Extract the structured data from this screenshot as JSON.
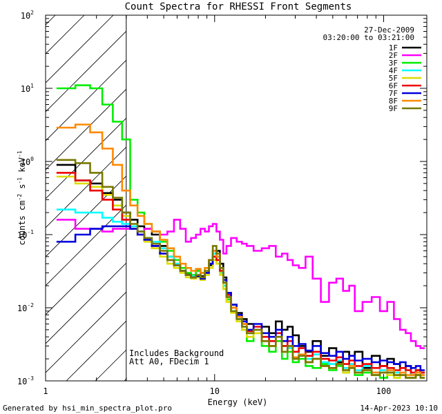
{
  "chart_data": {
    "type": "line",
    "title": "Count Spectra for RHESSI Front Segments",
    "xlabel": "Energy (keV)",
    "ylabel": "counts cm^-2 s^-1 keV^-1",
    "xscale": "log",
    "yscale": "log",
    "xlim": [
      1,
      180
    ],
    "ylim": [
      0.001,
      100
    ],
    "x_ticks": [
      {
        "value": 1,
        "label": "1"
      },
      {
        "value": 10,
        "label": "10"
      },
      {
        "value": 100,
        "label": "100"
      }
    ],
    "y_ticks": [
      {
        "value": 0.001,
        "base": "10",
        "exp": "-3"
      },
      {
        "value": 0.01,
        "base": "10",
        "exp": "-2"
      },
      {
        "value": 0.1,
        "base": "10",
        "exp": "-1"
      },
      {
        "value": 1,
        "base": "10",
        "exp": "0"
      },
      {
        "value": 10,
        "base": "10",
        "exp": "1"
      },
      {
        "value": 100,
        "base": "10",
        "exp": "2"
      }
    ],
    "legend": {
      "position": "top-right",
      "date": "27-Dec-2009",
      "time_range": "03:20:00 to 03:21:00"
    },
    "shaded_region": {
      "x_from": 1,
      "x_to": 3,
      "pattern": "diagonal-hatch"
    },
    "annotations": [
      "Includes Background",
      "Att A0, FDecim 1"
    ],
    "energy_bins_keV": [
      1.33,
      1.67,
      2,
      2.33,
      2.67,
      3,
      3.33,
      3.67,
      4,
      4.5,
      5,
      5.5,
      6,
      6.5,
      7,
      7.5,
      8,
      8.5,
      9,
      9.5,
      10,
      10.5,
      11,
      11.5,
      12,
      13,
      14,
      15,
      16,
      18,
      20,
      22,
      24,
      26,
      28,
      30,
      33,
      36,
      40,
      45,
      50,
      55,
      60,
      65,
      70,
      80,
      90,
      100,
      110,
      120,
      130,
      140,
      150,
      160,
      170
    ],
    "series": [
      {
        "name": "1F",
        "color": "#000000",
        "values": [
          0.9,
          0.55,
          0.5,
          0.37,
          0.3,
          0.2,
          0.16,
          0.13,
          0.12,
          0.1,
          0.07,
          0.05,
          0.04,
          0.032,
          0.029,
          0.027,
          0.032,
          0.027,
          0.03,
          0.038,
          0.05,
          0.06,
          0.04,
          0.026,
          0.016,
          0.011,
          0.0085,
          0.007,
          0.006,
          0.005,
          0.0055,
          0.0045,
          0.0065,
          0.005,
          0.0055,
          0.0042,
          0.003,
          0.0025,
          0.0035,
          0.0022,
          0.0028,
          0.0018,
          0.0025,
          0.0022,
          0.0025,
          0.0015,
          0.0022,
          0.0016,
          0.002,
          0.0017,
          0.0015,
          0.0016,
          0.0012,
          0.0014,
          0.0013
        ]
      },
      {
        "name": "2F",
        "color": "#ff00ff",
        "values": [
          0.16,
          0.12,
          0.12,
          0.11,
          0.12,
          0.12,
          0.12,
          0.11,
          0.12,
          0.11,
          0.1,
          0.11,
          0.16,
          0.12,
          0.08,
          0.09,
          0.1,
          0.12,
          0.11,
          0.13,
          0.14,
          0.11,
          0.085,
          0.055,
          0.07,
          0.09,
          0.08,
          0.075,
          0.07,
          0.06,
          0.065,
          0.07,
          0.05,
          0.055,
          0.045,
          0.038,
          0.035,
          0.05,
          0.025,
          0.012,
          0.022,
          0.025,
          0.017,
          0.02,
          0.009,
          0.012,
          0.014,
          0.009,
          0.012,
          0.007,
          0.005,
          0.0045,
          0.0035,
          0.003,
          0.0028
        ]
      },
      {
        "name": "3F",
        "color": "#00ee00",
        "values": [
          10,
          11,
          10,
          6,
          3.5,
          2,
          0.3,
          0.2,
          0.14,
          0.11,
          0.08,
          0.06,
          0.045,
          0.035,
          0.03,
          0.028,
          0.032,
          0.03,
          0.035,
          0.045,
          0.05,
          0.04,
          0.03,
          0.02,
          0.013,
          0.01,
          0.007,
          0.005,
          0.0035,
          0.0045,
          0.003,
          0.0025,
          0.0035,
          0.002,
          0.0025,
          0.0018,
          0.002,
          0.0016,
          0.0015,
          0.0017,
          0.0014,
          0.0016,
          0.0013,
          0.0015,
          0.0012,
          0.0013,
          0.0012,
          0.0011,
          0.0013,
          0.0011,
          0.0012,
          0.0011,
          0.0011,
          0.0012,
          0.0011
        ]
      },
      {
        "name": "4F",
        "color": "#00ffff",
        "values": [
          0.22,
          0.2,
          0.2,
          0.17,
          0.15,
          0.14,
          0.13,
          0.11,
          0.09,
          0.08,
          0.065,
          0.05,
          0.04,
          0.032,
          0.028,
          0.027,
          0.028,
          0.026,
          0.03,
          0.04,
          0.055,
          0.045,
          0.03,
          0.02,
          0.014,
          0.009,
          0.007,
          0.0055,
          0.0045,
          0.005,
          0.004,
          0.0035,
          0.0045,
          0.003,
          0.0028,
          0.0025,
          0.0022,
          0.002,
          0.0023,
          0.0018,
          0.0017,
          0.0019,
          0.0015,
          0.0017,
          0.0014,
          0.0016,
          0.0013,
          0.0014,
          0.0015,
          0.0013,
          0.0012,
          0.0014,
          0.0012,
          0.0013,
          0.0012
        ]
      },
      {
        "name": "5F",
        "color": "#dddd00",
        "values": [
          0.62,
          0.5,
          0.45,
          0.35,
          0.25,
          0.18,
          0.12,
          0.1,
          0.08,
          0.065,
          0.05,
          0.04,
          0.035,
          0.03,
          0.026,
          0.025,
          0.026,
          0.024,
          0.028,
          0.035,
          0.045,
          0.04,
          0.028,
          0.018,
          0.012,
          0.0085,
          0.0065,
          0.005,
          0.004,
          0.0045,
          0.0035,
          0.003,
          0.004,
          0.0025,
          0.003,
          0.002,
          0.0022,
          0.0018,
          0.002,
          0.0016,
          0.0015,
          0.0017,
          0.0013,
          0.0015,
          0.0013,
          0.0014,
          0.0012,
          0.0013,
          0.0012,
          0.0011,
          0.0012,
          0.0011,
          0.0011,
          0.0012,
          0.0011
        ]
      },
      {
        "name": "6F",
        "color": "#ee0000",
        "values": [
          0.7,
          0.55,
          0.4,
          0.3,
          0.22,
          0.16,
          0.12,
          0.1,
          0.085,
          0.07,
          0.055,
          0.045,
          0.038,
          0.032,
          0.028,
          0.026,
          0.027,
          0.025,
          0.03,
          0.04,
          0.05,
          0.045,
          0.032,
          0.022,
          0.015,
          0.01,
          0.0075,
          0.006,
          0.0048,
          0.0055,
          0.004,
          0.0035,
          0.0045,
          0.003,
          0.0035,
          0.0025,
          0.0028,
          0.0022,
          0.0025,
          0.002,
          0.0019,
          0.0021,
          0.0017,
          0.0019,
          0.0016,
          0.0017,
          0.0015,
          0.0016,
          0.0015,
          0.0014,
          0.0015,
          0.0014,
          0.0013,
          0.0014,
          0.0013
        ]
      },
      {
        "name": "7F",
        "color": "#0000dd",
        "values": [
          0.08,
          0.1,
          0.12,
          0.13,
          0.13,
          0.13,
          0.12,
          0.1,
          0.085,
          0.07,
          0.055,
          0.045,
          0.038,
          0.032,
          0.028,
          0.026,
          0.027,
          0.025,
          0.03,
          0.04,
          0.06,
          0.05,
          0.035,
          0.024,
          0.016,
          0.011,
          0.008,
          0.0065,
          0.005,
          0.006,
          0.0045,
          0.004,
          0.005,
          0.0035,
          0.004,
          0.003,
          0.0032,
          0.0026,
          0.003,
          0.0024,
          0.0022,
          0.0025,
          0.002,
          0.0022,
          0.0019,
          0.002,
          0.0018,
          0.0019,
          0.0018,
          0.0017,
          0.0018,
          0.0016,
          0.0015,
          0.0016,
          0.0014
        ]
      },
      {
        "name": "8F",
        "color": "#ff8800",
        "values": [
          2.9,
          3.2,
          2.5,
          1.5,
          0.9,
          0.4,
          0.25,
          0.18,
          0.14,
          0.11,
          0.085,
          0.065,
          0.05,
          0.04,
          0.035,
          0.032,
          0.034,
          0.03,
          0.035,
          0.045,
          0.06,
          0.05,
          0.035,
          0.022,
          0.014,
          0.01,
          0.0075,
          0.006,
          0.0045,
          0.005,
          0.0035,
          0.003,
          0.004,
          0.0025,
          0.003,
          0.0021,
          0.0023,
          0.0018,
          0.002,
          0.0016,
          0.0015,
          0.0017,
          0.0014,
          0.0016,
          0.0013,
          0.0014,
          0.0013,
          0.0013,
          0.0014,
          0.0012,
          0.0013,
          0.0012,
          0.0012,
          0.0013,
          0.0012
        ]
      },
      {
        "name": "9F",
        "color": "#777700",
        "values": [
          1.05,
          0.95,
          0.7,
          0.45,
          0.32,
          0.2,
          0.14,
          0.11,
          0.09,
          0.075,
          0.06,
          0.045,
          0.038,
          0.032,
          0.028,
          0.026,
          0.028,
          0.026,
          0.032,
          0.045,
          0.07,
          0.055,
          0.035,
          0.022,
          0.014,
          0.009,
          0.007,
          0.0055,
          0.0045,
          0.005,
          0.0035,
          0.003,
          0.004,
          0.0025,
          0.003,
          0.002,
          0.0022,
          0.0018,
          0.002,
          0.0016,
          0.0015,
          0.0017,
          0.0014,
          0.0015,
          0.0013,
          0.0014,
          0.0012,
          0.0013,
          0.0013,
          0.0012,
          0.0012,
          0.0011,
          0.0011,
          0.0012,
          0.0011
        ]
      }
    ]
  },
  "footer": {
    "generator": "Generated by hsi_min_spectra_plot.pro",
    "timestamp": "14-Apr-2023 10:10"
  }
}
